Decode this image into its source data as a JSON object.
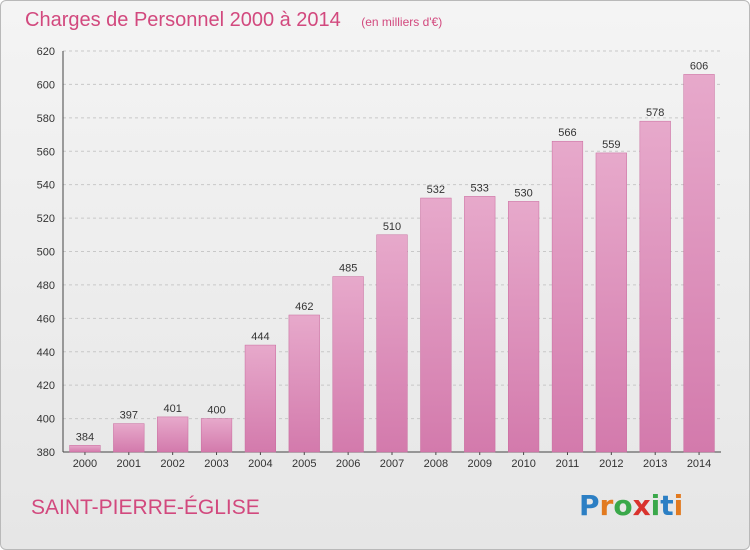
{
  "header": {
    "title": "Charges de Personnel 2000 à 2014",
    "unit": "(en milliers d'€)"
  },
  "footer": {
    "place": "SAINT-PIERRE-ÉGLISE",
    "logo_letters": [
      "P",
      "r",
      "o",
      "x",
      "i",
      "t",
      "i"
    ],
    "logo_colors": [
      "#2c7fc4",
      "#e27a1f",
      "#3aa84a",
      "#d9332d",
      "#3aa84a",
      "#2c7fc4",
      "#e27a1f"
    ]
  },
  "colors": {
    "bar": "#d37aac",
    "bar_light": "#e7a9cb",
    "accent": "#d2497e"
  },
  "chart_data": {
    "type": "bar",
    "categories": [
      "2000",
      "2001",
      "2002",
      "2003",
      "2004",
      "2005",
      "2006",
      "2007",
      "2008",
      "2009",
      "2010",
      "2011",
      "2012",
      "2013",
      "2014"
    ],
    "values": [
      384,
      397,
      401,
      400,
      444,
      462,
      485,
      510,
      532,
      533,
      530,
      566,
      559,
      578,
      606
    ],
    "ylim": [
      380,
      620
    ],
    "yticks": [
      380,
      400,
      420,
      440,
      460,
      480,
      500,
      520,
      540,
      560,
      580,
      600,
      620
    ],
    "grid": true,
    "data_labels": true
  }
}
